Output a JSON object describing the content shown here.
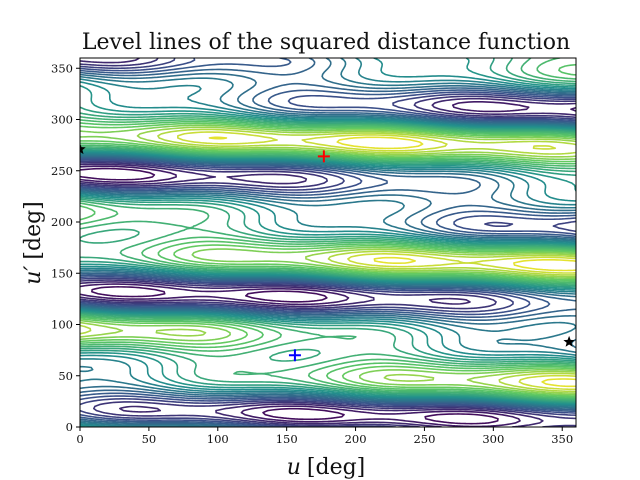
{
  "chart_data": {
    "type": "contour",
    "title": "Level lines of the squared distance function",
    "xlabel_var": "u",
    "xlabel_unit": "[deg]",
    "ylabel_var": "u′",
    "ylabel_unit": "[deg]",
    "xlim": [
      0,
      360
    ],
    "ylim": [
      0,
      360
    ],
    "xticks": [
      0,
      50,
      100,
      150,
      200,
      250,
      300,
      350
    ],
    "yticks": [
      0,
      50,
      100,
      150,
      200,
      250,
      300,
      350
    ],
    "colormap": "viridis",
    "level_count": 24,
    "markers": [
      {
        "name": "maximum",
        "symbol": "+",
        "color": "#ff0000",
        "x": 177,
        "y": 264
      },
      {
        "name": "minimum",
        "symbol": "+",
        "color": "#0000ff",
        "x": 156,
        "y": 70
      },
      {
        "name": "critical-point-left",
        "symbol": "star",
        "color": "#000000",
        "x": 0,
        "y": 271
      },
      {
        "name": "critical-point-right",
        "symbol": "star",
        "color": "#000000",
        "x": 355,
        "y": 83
      }
    ]
  }
}
